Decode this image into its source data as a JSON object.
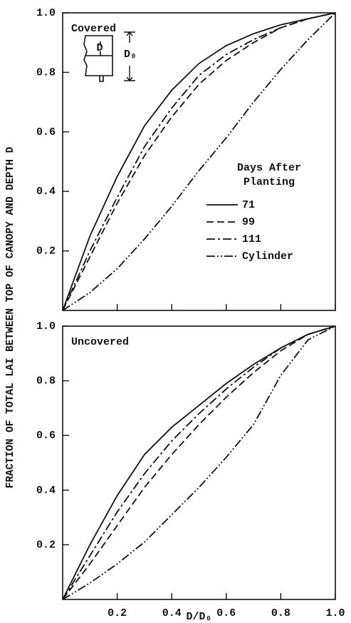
{
  "chart_data": [
    {
      "type": "line",
      "annotation": "Covered",
      "ylabel": "FRACTION OF TOTAL LAI BETWEEN TOP OF CANOPY AND DEPTH D",
      "inset_labels": [
        "D",
        "D₀"
      ],
      "legend_title": "Days After Planting",
      "legend": "right",
      "x": [
        0,
        0.1,
        0.2,
        0.3,
        0.4,
        0.5,
        0.6,
        0.7,
        0.8,
        0.9,
        1.0
      ],
      "series": [
        {
          "name": "71",
          "color": "#111111",
          "dash": "solid",
          "values": [
            0,
            0.25,
            0.45,
            0.62,
            0.74,
            0.83,
            0.89,
            0.93,
            0.96,
            0.98,
            1.0
          ]
        },
        {
          "name": "99",
          "color": "#111111",
          "dash": "dashed",
          "values": [
            0,
            0.18,
            0.36,
            0.52,
            0.65,
            0.76,
            0.84,
            0.9,
            0.95,
            0.98,
            1.0
          ]
        },
        {
          "name": "111",
          "color": "#111111",
          "dash": "dashdot",
          "values": [
            0,
            0.2,
            0.38,
            0.55,
            0.68,
            0.79,
            0.86,
            0.91,
            0.95,
            0.98,
            1.0
          ]
        },
        {
          "name": "Cylinder",
          "color": "#111111",
          "dash": "dashdotdot",
          "values": [
            0,
            0.06,
            0.14,
            0.24,
            0.35,
            0.47,
            0.58,
            0.7,
            0.81,
            0.91,
            1.0
          ]
        }
      ],
      "xlim": [
        0,
        1
      ],
      "ylim": [
        0,
        1
      ],
      "yticks": [
        0.2,
        0.4,
        0.6,
        0.8,
        {
          "value": 1,
          "label": "1.0"
        }
      ]
    },
    {
      "type": "line",
      "annotation": "Uncovered",
      "xlabel": "D/D₀",
      "x": [
        0,
        0.1,
        0.2,
        0.3,
        0.4,
        0.5,
        0.6,
        0.7,
        0.8,
        0.9,
        1.0
      ],
      "series": [
        {
          "color": "#111111",
          "dash": "solid",
          "values": [
            0,
            0.2,
            0.38,
            0.53,
            0.63,
            0.71,
            0.79,
            0.86,
            0.92,
            0.97,
            1.0
          ]
        },
        {
          "color": "#111111",
          "dash": "dashed",
          "values": [
            0,
            0.13,
            0.27,
            0.41,
            0.53,
            0.64,
            0.74,
            0.83,
            0.91,
            0.97,
            1.0
          ]
        },
        {
          "color": "#111111",
          "dash": "dashdot",
          "values": [
            0,
            0.16,
            0.32,
            0.46,
            0.58,
            0.68,
            0.77,
            0.85,
            0.92,
            0.97,
            1.0
          ]
        },
        {
          "color": "#111111",
          "dash": "dashdotdot",
          "values": [
            0,
            0.06,
            0.13,
            0.21,
            0.31,
            0.41,
            0.52,
            0.64,
            0.82,
            0.95,
            1.0
          ]
        }
      ],
      "xlim": [
        0,
        1
      ],
      "ylim": [
        0,
        1
      ],
      "xticks": [
        0.2,
        0.4,
        0.6,
        0.8,
        {
          "value": 1,
          "label": "1.0"
        }
      ],
      "yticks": [
        0.2,
        0.4,
        0.6,
        0.8,
        {
          "value": 1,
          "label": "1.0"
        }
      ]
    }
  ]
}
